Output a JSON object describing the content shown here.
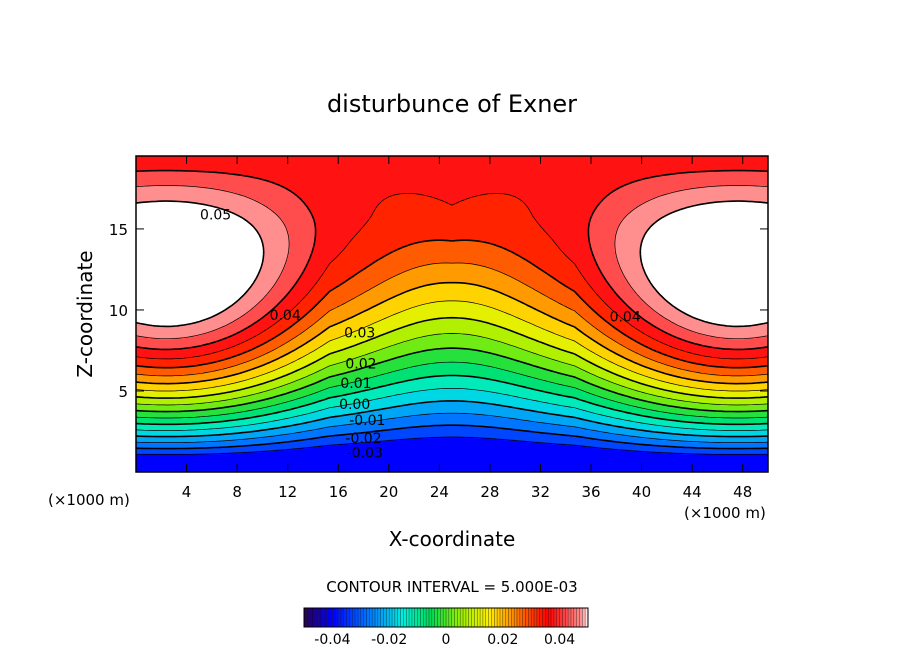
{
  "chart_data": {
    "type": "contour",
    "title": "disturbunce of Exner",
    "xlabel": "X-coordinate",
    "ylabel": "Z-coordinate",
    "x_unit_left": "(×1000 m)",
    "x_unit_right": "(×1000 m)",
    "xlim": [
      0,
      50
    ],
    "ylim": [
      0,
      19.5
    ],
    "x_ticks": [
      4,
      8,
      12,
      16,
      20,
      24,
      28,
      32,
      36,
      40,
      44,
      48
    ],
    "y_ticks": [
      5,
      10,
      15
    ],
    "contour_interval_text": "CONTOUR INTERVAL = 5.000E-03",
    "contour_levels": [
      -0.035,
      -0.03,
      -0.025,
      -0.02,
      -0.015,
      -0.01,
      -0.005,
      0.0,
      0.005,
      0.01,
      0.015,
      0.02,
      0.025,
      0.03,
      0.035,
      0.04,
      0.045,
      0.05
    ],
    "value_range": [
      -0.045,
      0.055
    ],
    "contour_labels": [
      {
        "text": "0.05",
        "x": 6.3,
        "z": 15.9
      },
      {
        "text": "0.04",
        "x": 11.8,
        "z": 9.7
      },
      {
        "text": "0.04",
        "x": 38.7,
        "z": 9.6
      },
      {
        "text": "0.03",
        "x": 17.7,
        "z": 8.6
      },
      {
        "text": "0.02",
        "x": 17.8,
        "z": 6.7
      },
      {
        "text": "0.01",
        "x": 17.4,
        "z": 5.5
      },
      {
        "text": "0.00",
        "x": 17.3,
        "z": 4.2
      },
      {
        "text": "-0.01",
        "x": 18.3,
        "z": 3.2
      },
      {
        "text": "-0.02",
        "x": 18.0,
        "z": 2.1
      },
      {
        "text": "-0.03",
        "x": 18.1,
        "z": 1.2
      }
    ],
    "colorbar": {
      "range": [
        -0.05,
        0.05
      ],
      "tick_values": [
        -0.04,
        -0.02,
        0,
        0.02,
        0.04
      ],
      "tick_labels": [
        "-0.04",
        "-0.02",
        "0",
        "0.02",
        "0.04"
      ]
    },
    "colors": {
      "max": "#ffffff",
      "high": "#ff0000",
      "mid": "#66ee00",
      "low": "#0000ff"
    }
  }
}
